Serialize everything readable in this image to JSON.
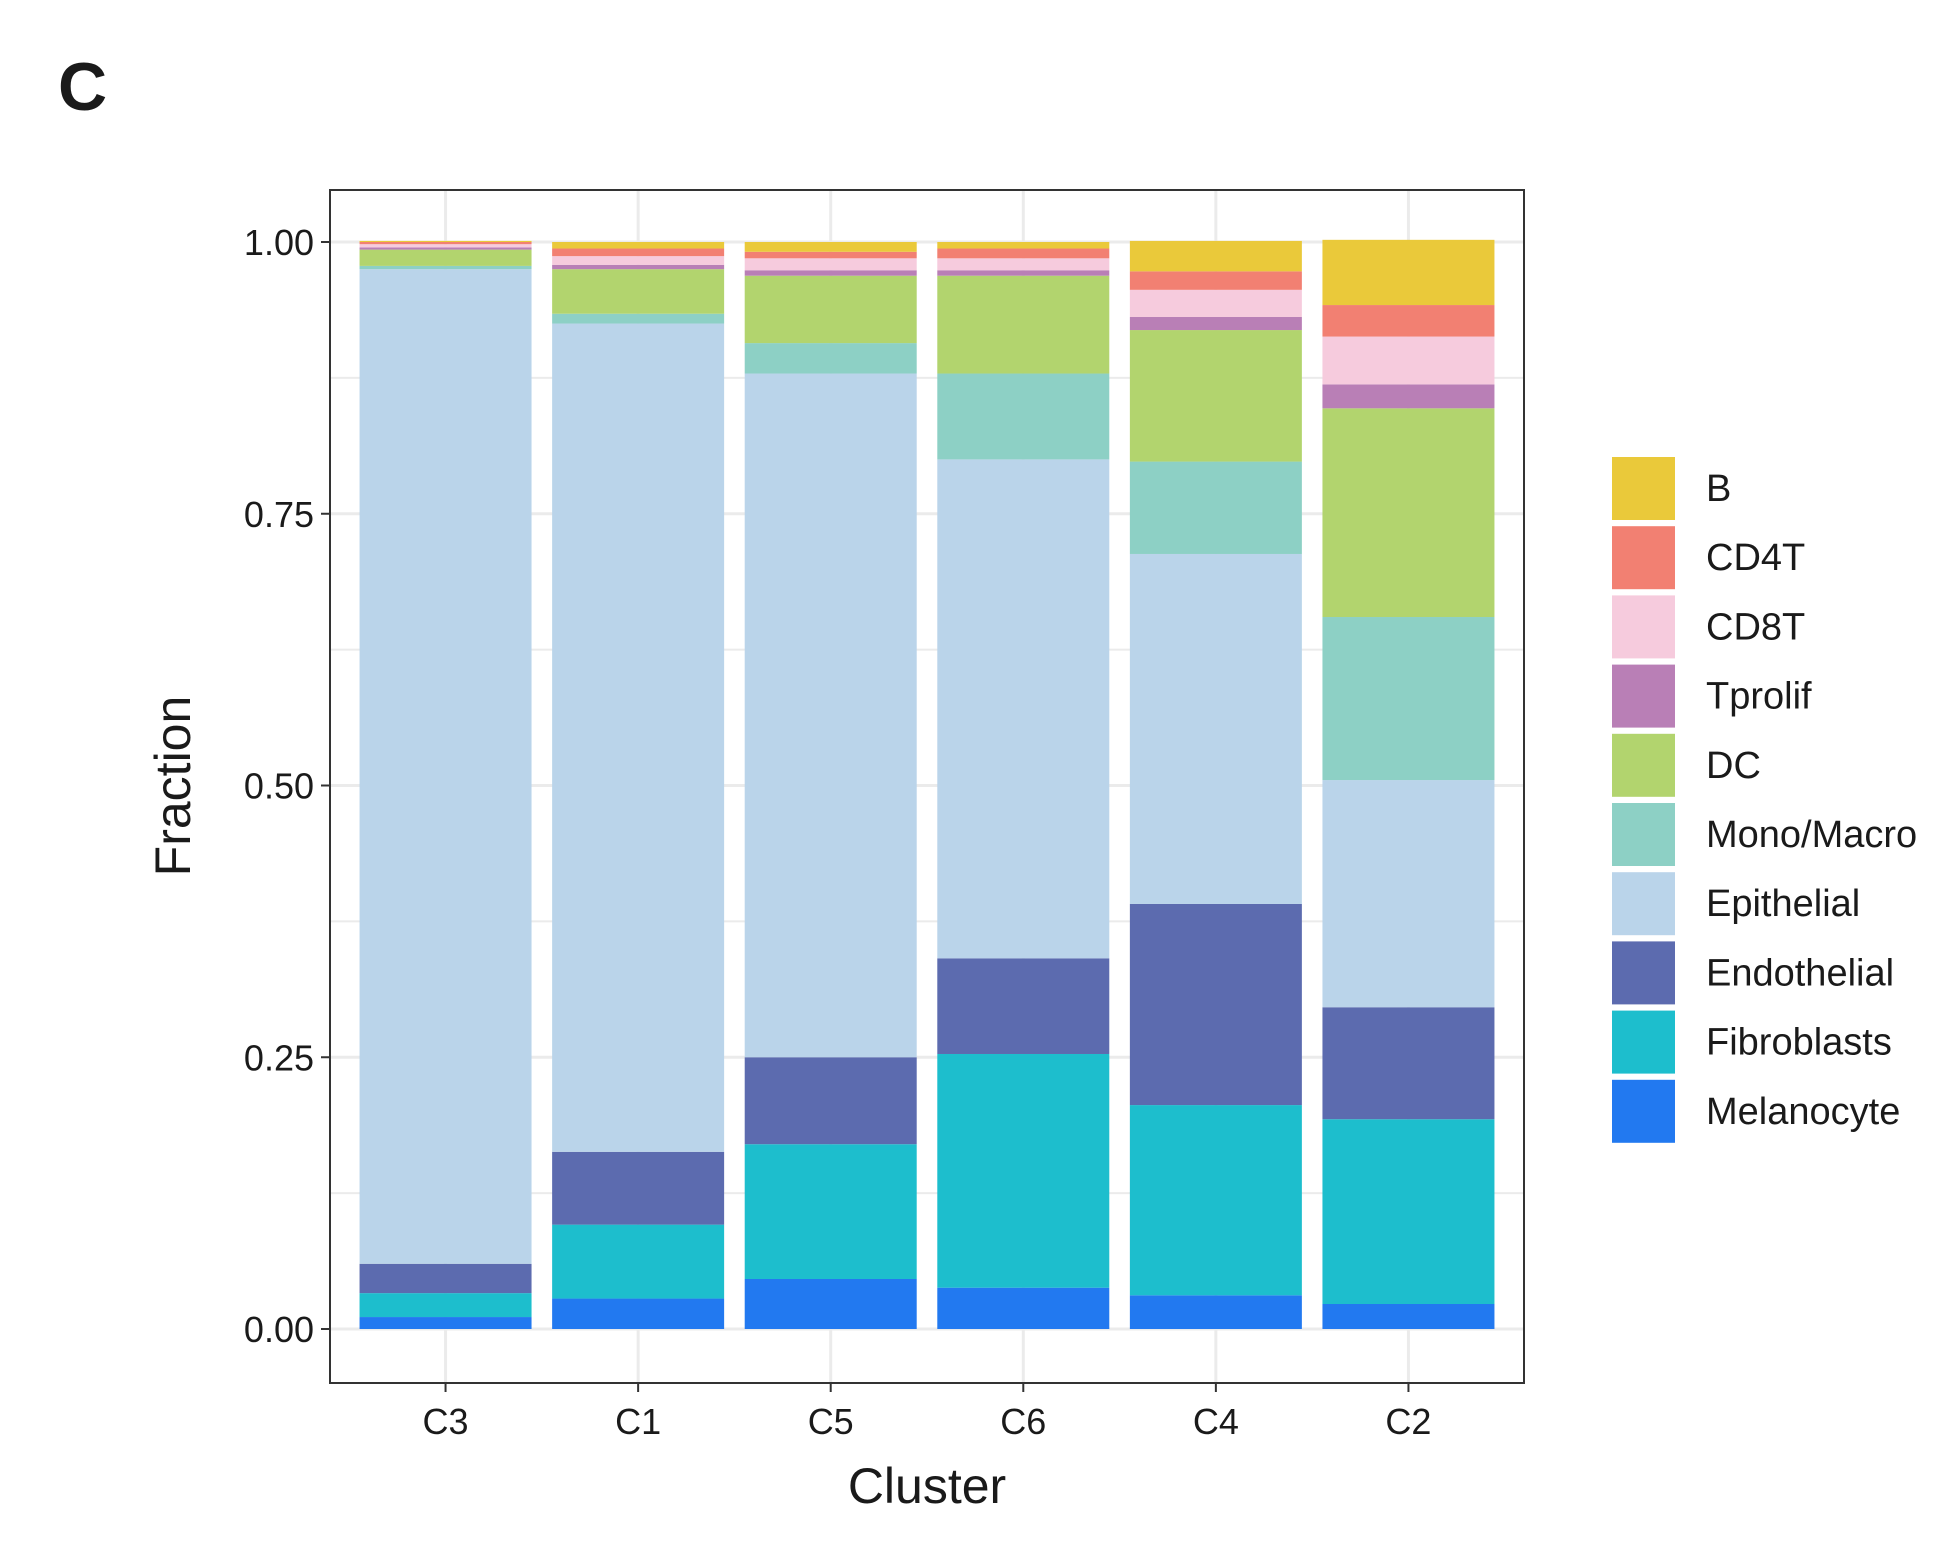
{
  "panel_label": "C",
  "chart_data": {
    "type": "bar",
    "stacked": true,
    "xlabel": "Cluster",
    "ylabel": "Fraction",
    "ylim": [
      0,
      1
    ],
    "yticks": [
      "0.00",
      "0.25",
      "0.50",
      "0.75",
      "1.00"
    ],
    "grid": true,
    "legend_position": "right",
    "categories": [
      "C3",
      "C1",
      "C5",
      "C6",
      "C4",
      "C2"
    ],
    "series": [
      {
        "name": "Melanocyte",
        "color": "#2279F0",
        "values": [
          0.011,
          0.028,
          0.046,
          0.038,
          0.031,
          0.023
        ]
      },
      {
        "name": "Fibroblasts",
        "color": "#1DBECD",
        "values": [
          0.022,
          0.068,
          0.124,
          0.215,
          0.175,
          0.17
        ]
      },
      {
        "name": "Endothelial",
        "color": "#5C6BAF",
        "values": [
          0.027,
          0.067,
          0.08,
          0.088,
          0.185,
          0.103
        ]
      },
      {
        "name": "Epithelial",
        "color": "#BAD4EA",
        "values": [
          0.915,
          0.762,
          0.629,
          0.459,
          0.322,
          0.209
        ]
      },
      {
        "name": "Mono/Macro",
        "color": "#8DD0C5",
        "values": [
          0.003,
          0.009,
          0.028,
          0.079,
          0.085,
          0.15
        ]
      },
      {
        "name": "DC",
        "color": "#B2D46E",
        "values": [
          0.015,
          0.041,
          0.062,
          0.09,
          0.121,
          0.192
        ]
      },
      {
        "name": "Tprolif",
        "color": "#B97FB6",
        "values": [
          0.002,
          0.004,
          0.005,
          0.005,
          0.012,
          0.022
        ]
      },
      {
        "name": "CD8T",
        "color": "#F6CBDD",
        "values": [
          0.003,
          0.008,
          0.011,
          0.011,
          0.025,
          0.044
        ]
      },
      {
        "name": "CD4T",
        "color": "#F28072",
        "values": [
          0.002,
          0.007,
          0.006,
          0.009,
          0.017,
          0.029
        ]
      },
      {
        "name": "B",
        "color": "#EAC93A",
        "values": [
          0.001,
          0.006,
          0.009,
          0.006,
          0.028,
          0.06
        ]
      }
    ]
  }
}
